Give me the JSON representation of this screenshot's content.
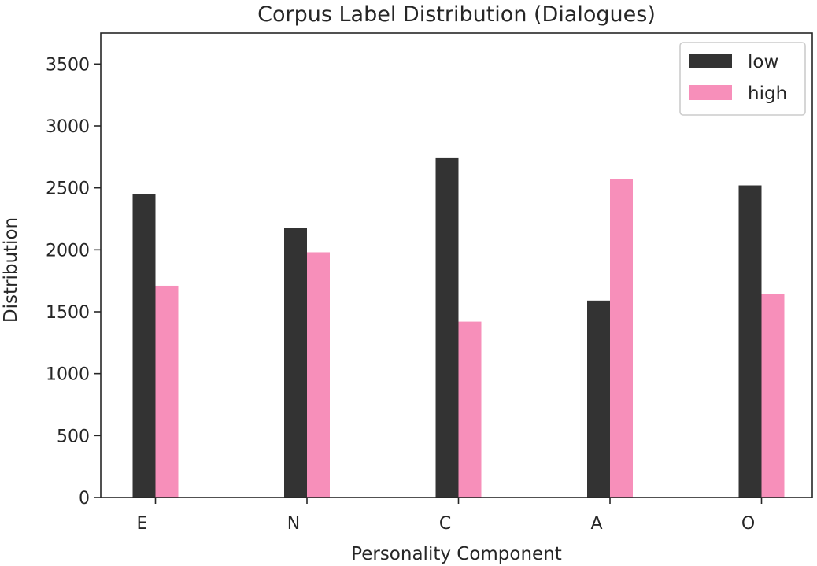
{
  "chart_data": {
    "type": "bar",
    "title": "Corpus Label Distribution (Dialogues)",
    "xlabel": "Personality Component",
    "ylabel": "Distribution",
    "categories": [
      "E",
      "N",
      "C",
      "A",
      "O"
    ],
    "series": [
      {
        "name": "low",
        "color": "#333333",
        "values": [
          2450,
          2180,
          2740,
          1590,
          2520
        ]
      },
      {
        "name": "high",
        "color": "#f78fba",
        "values": [
          1710,
          1980,
          1420,
          2570,
          1640
        ]
      }
    ],
    "ylim": [
      0,
      3750
    ],
    "yticks": [
      0,
      500,
      1000,
      1500,
      2000,
      2500,
      3000,
      3500
    ],
    "grid": false,
    "legend_position": "top-right"
  }
}
